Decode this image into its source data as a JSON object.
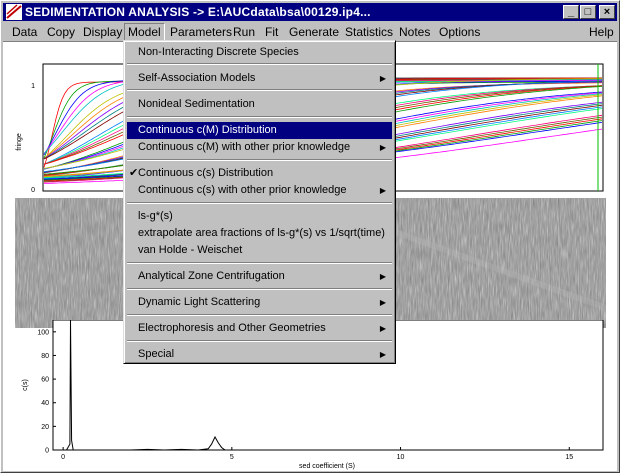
{
  "window": {
    "title": "SEDIMENTATION ANALYSIS -> E:\\AUCdata\\bsa\\00129.ip4...",
    "minimize_glyph": "_",
    "maximize_glyph": "□",
    "close_glyph": "×"
  },
  "menubar": {
    "items": [
      {
        "label": "Data"
      },
      {
        "label": "Copy"
      },
      {
        "label": "Display"
      },
      {
        "label": "Model"
      },
      {
        "label": "Parameters"
      },
      {
        "label": "Run"
      },
      {
        "label": "Fit"
      },
      {
        "label": "Generate"
      },
      {
        "label": "Statistics"
      },
      {
        "label": "Notes"
      },
      {
        "label": "Options"
      },
      {
        "label": "Help"
      }
    ]
  },
  "model_menu": {
    "items": [
      {
        "label": "Non-Interacting Discrete Species",
        "submenu": false
      },
      {
        "label": "Self-Association Models",
        "submenu": true
      },
      {
        "label": "Nonideal Sedimentation",
        "submenu": false
      },
      {
        "label": "Continuous c(M) Distribution",
        "submenu": false,
        "highlighted": true
      },
      {
        "label": "Continuous c(M) with other prior knowledge",
        "submenu": true
      },
      {
        "label": "Continuous c(s) Distribution",
        "submenu": false,
        "checked": true
      },
      {
        "label": "Continuous c(s) with other prior knowledge",
        "submenu": true
      },
      {
        "label": "ls-g*(s)",
        "submenu": false
      },
      {
        "label": "extrapolate area fractions of ls-g*(s) vs 1/sqrt(time)",
        "submenu": false
      },
      {
        "label": "van Holde - Weischet",
        "submenu": false
      },
      {
        "label": "Analytical Zone Centrifugation",
        "submenu": true
      },
      {
        "label": "Dynamic Light Scattering",
        "submenu": true
      },
      {
        "label": "Electrophoresis and Other Geometries",
        "submenu": true
      },
      {
        "label": "Special",
        "submenu": true
      }
    ],
    "arrow_glyph": "▶",
    "check_glyph": "✔"
  },
  "upper_plot": {
    "ylabel": "fringe",
    "yticks": [
      "1",
      "0"
    ]
  },
  "lower_plot": {
    "ylabel": "c(s)",
    "xlabel": "sed coefficient (S)",
    "yticks": [
      "100",
      "80",
      "60",
      "40",
      "20",
      "0"
    ],
    "xticks": [
      "0",
      "5",
      "10",
      "15"
    ]
  },
  "chart_data": {
    "type": "line",
    "title": "",
    "xlabel": "sed coefficient (S)",
    "ylabel": "c(s)",
    "xlim": [
      -0.3,
      16
    ],
    "ylim": [
      0,
      110
    ],
    "series": [
      {
        "x": [
          0,
          0.1,
          0.2,
          0.22,
          0.25,
          0.3,
          0.5,
          2.0,
          2.5,
          3.0,
          3.5,
          4.0,
          4.3,
          4.4,
          4.5,
          4.6,
          4.7,
          4.8,
          5.0,
          8,
          12,
          16
        ],
        "y": [
          0,
          0,
          5,
          110,
          8,
          0,
          0,
          0,
          0.5,
          0,
          0.5,
          0,
          1,
          5,
          11,
          6,
          2,
          0,
          0,
          0,
          0,
          0
        ]
      }
    ],
    "colors": {
      "line": "#000000"
    }
  },
  "colors": {
    "titlebar": "#000080",
    "face": "#c0c0c0",
    "highlight": "#000080"
  }
}
